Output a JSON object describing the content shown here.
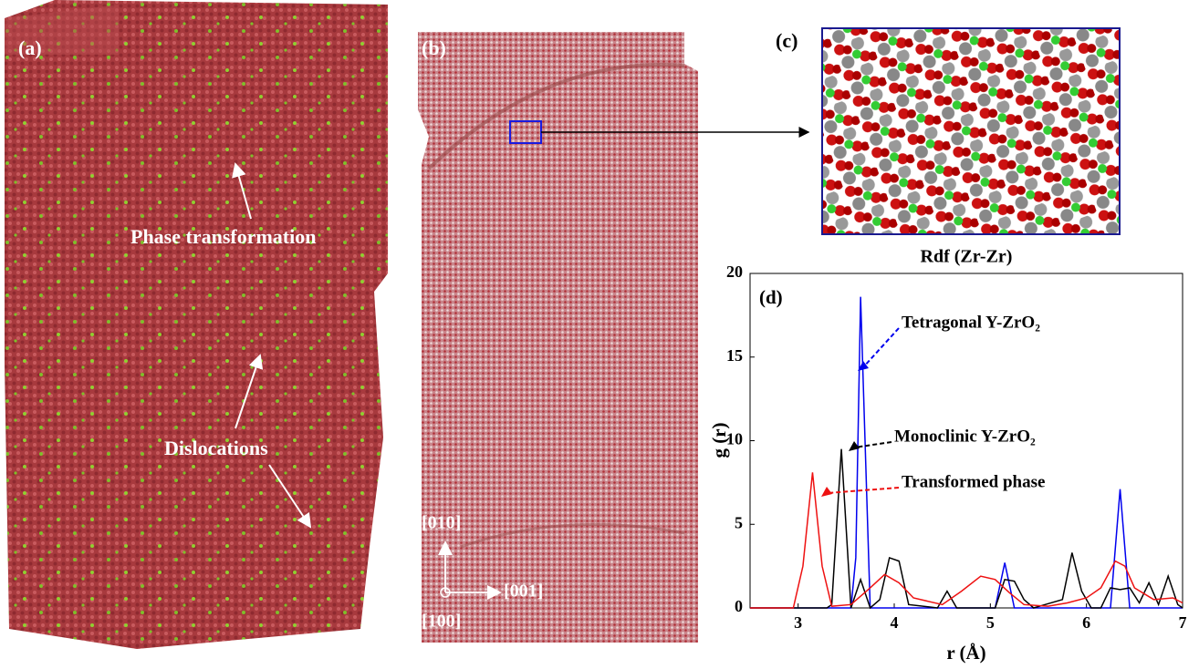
{
  "panels": {
    "a": {
      "label": "(a)",
      "notes": [
        "Phase transformation",
        "Dislocations"
      ]
    },
    "b": {
      "label": "(b)",
      "axes": [
        "[010]",
        "[001]",
        "[100]"
      ]
    },
    "c": {
      "label": "(c)"
    }
  },
  "chart_data": {
    "type": "line",
    "title": "Rdf (Zr-Zr)",
    "panel_label": "(d)",
    "x_label": "r (Å)",
    "y_label": "g (r)",
    "xlim": [
      2.5,
      7
    ],
    "xticks": [
      3,
      4,
      5,
      6,
      7
    ],
    "ylim": [
      0,
      20
    ],
    "yticks": [
      0,
      5,
      10,
      15,
      20
    ],
    "series": [
      {
        "name": "Tetragonal Y-ZrO₂",
        "color": "#0000ee",
        "x": [
          2.5,
          3.55,
          3.6,
          3.65,
          3.75,
          5.05,
          5.15,
          5.25,
          6.25,
          6.35,
          6.45,
          7.0
        ],
        "values": [
          0,
          0,
          3,
          18.6,
          0,
          0,
          2.7,
          0,
          0,
          7.1,
          0,
          0
        ]
      },
      {
        "name": "Monoclinic Y-ZrO₂",
        "color": "#000000",
        "x": [
          2.5,
          3.3,
          3.35,
          3.45,
          3.55,
          3.65,
          3.75,
          3.85,
          3.95,
          4.05,
          4.15,
          4.45,
          4.55,
          4.65,
          5.05,
          5.15,
          5.25,
          5.35,
          5.45,
          5.75,
          5.85,
          5.95,
          6.05,
          6.15,
          6.25,
          6.35,
          6.45,
          6.55,
          6.65,
          6.75,
          6.85,
          6.95,
          7.0
        ],
        "values": [
          0,
          0,
          0.2,
          9.5,
          0,
          1.7,
          0,
          0.5,
          3.0,
          2.8,
          0.2,
          0,
          1.0,
          0,
          0,
          1.7,
          1.6,
          0.5,
          0,
          0.5,
          3.3,
          1.0,
          0,
          0,
          1.2,
          1.1,
          1.2,
          0.3,
          1.5,
          0.2,
          1.9,
          0.2,
          0
        ]
      },
      {
        "name": "Transformed  phase",
        "color": "#ee1111",
        "x": [
          2.5,
          2.95,
          3.05,
          3.15,
          3.25,
          3.35,
          3.55,
          3.75,
          3.9,
          4.05,
          4.2,
          4.5,
          4.7,
          4.9,
          5.05,
          5.2,
          5.35,
          5.6,
          5.8,
          6.0,
          6.15,
          6.3,
          6.4,
          6.5,
          6.7,
          6.9,
          7.0
        ],
        "values": [
          0,
          0,
          2.5,
          8.1,
          2.5,
          0.1,
          0.2,
          1.2,
          2.0,
          1.5,
          0.6,
          0.2,
          1.0,
          1.9,
          1.7,
          0.9,
          0.2,
          0.1,
          0.3,
          0.6,
          1.2,
          2.8,
          2.5,
          1.2,
          0.5,
          0.6,
          0.3
        ]
      }
    ]
  }
}
